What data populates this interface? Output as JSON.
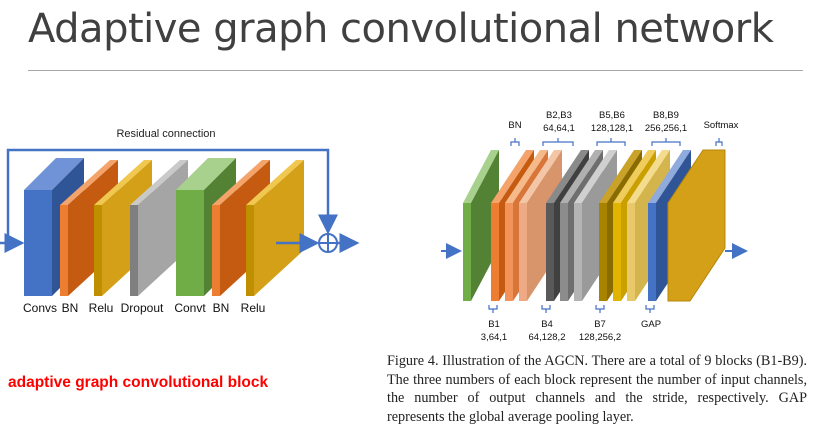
{
  "slide": {
    "title": "Adaptive graph convolutional network",
    "red_caption": "adaptive graph convolutional block",
    "figure_caption": "Figure 4. Illustration of the AGCN. There are a total of 9 blocks (B1-B9). The three numbers of each block represent the number of input channels, the number of output channels and the stride, respectively. GAP represents the global average pooling layer."
  },
  "left_diagram": {
    "residual_label": "Residual connection",
    "layer_labels": [
      "Convs",
      "BN",
      "Relu",
      "Dropout",
      "Convt",
      "BN",
      "Relu"
    ]
  },
  "right_diagram": {
    "top_labels": {
      "bn": "BN",
      "b2b3_name": "B2,B3",
      "b2b3_params": "64,64,1",
      "b5b6_name": "B5,B6",
      "b5b6_params": "128,128,1",
      "b8b9_name": "B8,B9",
      "b8b9_params": "256,256,1",
      "softmax": "Softmax"
    },
    "bottom_labels": {
      "b1_name": "B1",
      "b1_params": "3,64,1",
      "b4_name": "B4",
      "b4_params": "64,128,2",
      "b7_name": "B7",
      "b7_params": "128,256,2",
      "gap": "GAP"
    }
  },
  "colors": {
    "blue": "#4472c4",
    "orange": "#ed7d31",
    "gold": "#d4a017",
    "gray": "#a5a5a5",
    "green": "#70ad47",
    "arrow": "#4472c4",
    "caption_red": "#ff0000"
  }
}
